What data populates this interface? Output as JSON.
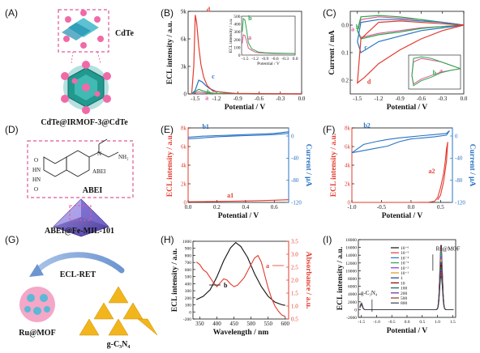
{
  "panel_letters": [
    "(A)",
    "(B)",
    "(C)",
    "(D)",
    "(E)",
    "(F)",
    "(G)",
    "(H)",
    "(I)"
  ],
  "schematics": {
    "A": {
      "cdte_label": "CdTe",
      "composite_label": "CdTe@IRMOF-3@CdTe"
    },
    "D": {
      "abei_label": "ABEI",
      "composite_label": "ABEI@Fe-MIL-101"
    },
    "G": {
      "ret_label": "ECL-RET",
      "donor_label": "Ru@MOF",
      "acceptor_label": "g-C₃N₄"
    }
  },
  "colors": {
    "red": "#e23b2e",
    "blue": "#2a73c4",
    "green": "#2aa84a",
    "pink": "#e0589a",
    "black": "#111111"
  },
  "chart_data": [
    {
      "panel": "B",
      "type": "line",
      "xlabel": "Potential / V",
      "ylabel": "ECL intensity / a.u.",
      "xlim": [
        -1.6,
        0.0
      ],
      "ylim": [
        0,
        9000
      ],
      "x_ticks": [
        "-1.5",
        "-1.2",
        "-0.9",
        "-0.6",
        "-0.3",
        "0.0"
      ],
      "y_ticks": [
        "0",
        "3k",
        "6k",
        "9k"
      ],
      "series": [
        {
          "name": "a",
          "color": "#e0589a",
          "x": [
            -1.55,
            -1.5,
            -1.45,
            -1.4,
            -1.3,
            -1.2,
            -0.6,
            0.0
          ],
          "y": [
            0,
            120,
            220,
            160,
            70,
            20,
            0,
            0
          ]
        },
        {
          "name": "b",
          "color": "#2aa84a",
          "x": [
            -1.55,
            -1.5,
            -1.45,
            -1.4,
            -1.3,
            -1.2,
            -0.6,
            0.0
          ],
          "y": [
            0,
            250,
            500,
            350,
            140,
            40,
            0,
            0
          ]
        },
        {
          "name": "c",
          "color": "#2a73c4",
          "x": [
            -1.55,
            -1.5,
            -1.45,
            -1.4,
            -1.35,
            -1.3,
            -1.2,
            -0.9,
            0.0
          ],
          "y": [
            0,
            400,
            1500,
            1300,
            900,
            600,
            250,
            30,
            0
          ]
        },
        {
          "name": "d",
          "color": "#e23b2e",
          "x": [
            -1.55,
            -1.52,
            -1.5,
            -1.48,
            -1.45,
            -1.42,
            -1.38,
            -1.33,
            -1.25,
            -1.0,
            0.0
          ],
          "y": [
            0,
            3000,
            8600,
            7800,
            5200,
            3200,
            1800,
            900,
            300,
            50,
            0
          ]
        }
      ],
      "inset": {
        "xlabel": "Potential / V",
        "ylabel": "ECL intensity / a.u.",
        "xlim": [
          -1.6,
          0.0
        ],
        "ylim": [
          0,
          500
        ],
        "x_ticks": [
          "-1.5",
          "-1.2",
          "-0.9",
          "-0.6",
          "-0.3",
          "0.0"
        ],
        "y_ticks": [
          "0",
          "100",
          "200",
          "300",
          "400",
          "500"
        ],
        "series": [
          {
            "name": "a",
            "color": "#e0589a",
            "x": [
              -1.58,
              -1.55,
              -1.5,
              -1.45,
              -1.4,
              -1.3,
              -1.2,
              -1.1,
              -0.9,
              -0.6,
              0.0
            ],
            "y": [
              150,
              260,
              250,
              180,
              90,
              60,
              40,
              30,
              25,
              20,
              20
            ]
          },
          {
            "name": "b",
            "color": "#2aa84a",
            "x": [
              -1.58,
              -1.55,
              -1.5,
              -1.45,
              -1.4,
              -1.3,
              -1.2,
              -1.1,
              -0.9,
              -0.6,
              0.0
            ],
            "y": [
              300,
              470,
              450,
              320,
              160,
              80,
              60,
              40,
              30,
              25,
              20
            ]
          }
        ]
      }
    },
    {
      "panel": "C",
      "type": "line",
      "xlabel": "Potential / V",
      "ylabel": "Current / mA",
      "xlim": [
        -1.6,
        0.0
      ],
      "ylim": [
        -0.05,
        0.25
      ],
      "y_inverted": true,
      "x_ticks": [
        "-1.5",
        "-1.2",
        "-0.9",
        "-0.6",
        "-0.3",
        "0.0"
      ],
      "y_ticks": [
        "0.0",
        "0.1",
        "0.2"
      ],
      "series": [
        {
          "name": "a",
          "color": "#e0589a",
          "x": [
            0.0,
            -0.3,
            -0.6,
            -0.9,
            -1.2,
            -1.45,
            -1.5,
            -1.45,
            -1.2,
            -0.9,
            -0.6,
            -0.3,
            0.0
          ],
          "y": [
            0.0,
            0.005,
            0.01,
            0.02,
            0.03,
            0.045,
            0.02,
            -0.02,
            -0.03,
            -0.025,
            -0.02,
            -0.01,
            0.0
          ]
        },
        {
          "name": "b",
          "color": "#2aa84a",
          "x": [
            0.0,
            -0.3,
            -0.6,
            -0.9,
            -1.2,
            -1.45,
            -1.5,
            -1.45,
            -1.2,
            -0.9,
            -0.6,
            -0.3,
            0.0
          ],
          "y": [
            0.0,
            0.005,
            0.012,
            0.025,
            0.035,
            0.05,
            0.02,
            -0.03,
            -0.035,
            -0.03,
            -0.02,
            -0.01,
            0.0
          ]
        },
        {
          "name": "c",
          "color": "#2a73c4",
          "x": [
            0.0,
            -0.3,
            -0.6,
            -0.9,
            -1.2,
            -1.45,
            -1.5,
            -1.45,
            -1.2,
            -0.9,
            -0.6,
            -0.3,
            0.0
          ],
          "y": [
            0.0,
            0.01,
            0.02,
            0.04,
            0.06,
            0.1,
            0.06,
            -0.01,
            -0.02,
            -0.02,
            -0.015,
            -0.01,
            0.0
          ]
        },
        {
          "name": "d",
          "color": "#e23b2e",
          "x": [
            0.0,
            -0.3,
            -0.6,
            -0.9,
            -1.2,
            -1.4,
            -1.5,
            -1.45,
            -1.2,
            -0.9,
            -0.6,
            -0.3,
            0.0
          ],
          "y": [
            0.0,
            0.02,
            0.05,
            0.09,
            0.14,
            0.19,
            0.21,
            0.05,
            -0.01,
            -0.015,
            -0.01,
            -0.005,
            0.0
          ]
        }
      ]
    },
    {
      "panel": "E",
      "type": "line",
      "xlabel": "Potential / V",
      "ylabel": "ECL intensity / a.u.",
      "ylabel_right": "Current / μA",
      "xlim": [
        0.0,
        0.7
      ],
      "ylim": [
        0,
        9000
      ],
      "ylim_right": [
        -120,
        15
      ],
      "x_ticks": [
        "0.0",
        "0.2",
        "0.4",
        "0.6"
      ],
      "y_ticks": [
        "0",
        "2k",
        "4k",
        "6k",
        "8k"
      ],
      "y_ticks_right": [
        "0",
        "-40",
        "-80",
        "-120"
      ],
      "series": [
        {
          "name": "a1",
          "color": "#e23b2e",
          "axis": "left",
          "x": [
            0.0,
            0.1,
            0.2,
            0.3,
            0.4,
            0.5,
            0.6,
            0.7
          ],
          "y": [
            80,
            100,
            120,
            150,
            180,
            220,
            260,
            320
          ]
        },
        {
          "name": "b1",
          "color": "#2a73c4",
          "axis": "right",
          "x": [
            0.0,
            0.1,
            0.2,
            0.3,
            0.4,
            0.5,
            0.6,
            0.7,
            0.7,
            0.6,
            0.5,
            0.4,
            0.3,
            0.2,
            0.1,
            0.0
          ],
          "y": [
            -2,
            0,
            1,
            2,
            3,
            4,
            5,
            8,
            5,
            3,
            2,
            1,
            0,
            -1,
            -3,
            -5
          ]
        }
      ]
    },
    {
      "panel": "F",
      "type": "line",
      "xlabel": "Potential / V",
      "ylabel": "ECL intensity / a.u.",
      "ylabel_right": "Current / μA",
      "xlim": [
        -1.0,
        0.7
      ],
      "ylim": [
        0,
        9000
      ],
      "ylim_right": [
        -120,
        15
      ],
      "x_ticks": [
        "-1.0",
        "-0.5",
        "0.0",
        "0.5"
      ],
      "y_ticks": [
        "0",
        "2k",
        "4k",
        "6k",
        "8k"
      ],
      "y_ticks_right": [
        "0",
        "-40",
        "-80",
        "-120"
      ],
      "series": [
        {
          "name": "a2",
          "color": "#e23b2e",
          "axis": "left",
          "x": [
            -1.0,
            -0.5,
            0.0,
            0.3,
            0.4,
            0.45,
            0.5,
            0.55,
            0.58,
            0.6,
            0.62,
            0.6,
            0.55,
            0.5,
            0.45
          ],
          "y": [
            0,
            0,
            0,
            20,
            150,
            600,
            1800,
            3500,
            5000,
            6500,
            7300,
            5000,
            2500,
            900,
            300
          ]
        },
        {
          "name": "b2",
          "color": "#2a73c4",
          "axis": "right",
          "x": [
            -1.0,
            -0.8,
            -0.6,
            -0.4,
            -0.2,
            0.0,
            0.2,
            0.4,
            0.6,
            0.65,
            0.6,
            0.4,
            0.2,
            0.0,
            -0.2,
            -0.4,
            -0.6,
            -0.8,
            -1.0
          ],
          "y": [
            -30,
            -15,
            -10,
            -6,
            -3,
            -1,
            1,
            3,
            5,
            10,
            2,
            -1,
            -3,
            -5,
            -10,
            -18,
            -22,
            -26,
            -30
          ]
        }
      ]
    },
    {
      "panel": "H",
      "type": "line",
      "xlabel": "Wavelength / nm",
      "ylabel": "ECL intensity / a.u.",
      "ylabel_right": "Absorbance / a.u.",
      "xlim": [
        330,
        610
      ],
      "ylim": [
        -200,
        1000
      ],
      "ylim_right": [
        0.5,
        3.5
      ],
      "x_ticks": [
        "350",
        "400",
        "450",
        "500",
        "550",
        "600"
      ],
      "y_ticks": [
        "-200",
        "0",
        "100",
        "200",
        "300",
        "400",
        "500",
        "600",
        "700",
        "800",
        "900",
        "1000"
      ],
      "y_ticks_right": [
        "0.5",
        "1.0",
        "1.5",
        "2.0",
        "2.5",
        "3.0",
        "3.5"
      ],
      "series": [
        {
          "name": "b",
          "color": "#111111",
          "axis": "left",
          "x": [
            340,
            360,
            380,
            400,
            420,
            440,
            455,
            470,
            490,
            510,
            530,
            550,
            570,
            590,
            600
          ],
          "y": [
            100,
            150,
            250,
            450,
            700,
            900,
            980,
            920,
            750,
            500,
            300,
            150,
            60,
            20,
            10
          ]
        },
        {
          "name": "a",
          "color": "#e23b2e",
          "axis": "right",
          "x": [
            340,
            350,
            360,
            370,
            380,
            390,
            400,
            410,
            420,
            430,
            440,
            450,
            460,
            470,
            480,
            490,
            500,
            510,
            520,
            530,
            540,
            550,
            560,
            570,
            580,
            590,
            600
          ],
          "y": [
            2.7,
            2.6,
            2.4,
            2.3,
            2.1,
            1.9,
            1.75,
            1.9,
            2.05,
            2.0,
            1.85,
            1.75,
            1.8,
            1.95,
            2.1,
            2.35,
            2.6,
            2.85,
            2.95,
            2.7,
            2.2,
            1.7,
            1.3,
            1.0,
            0.8,
            0.65,
            0.6
          ]
        }
      ]
    },
    {
      "panel": "I",
      "type": "line",
      "xlabel": "Potential / V",
      "ylabel": "ECL intensity / a.u.",
      "xlim": [
        -1.6,
        1.6
      ],
      "ylim": [
        -2000,
        18000
      ],
      "x_ticks": [
        "-1.5",
        "-1.0",
        "-0.5",
        "0.0",
        "0.5",
        "1.0",
        "1.5"
      ],
      "y_ticks": [
        "-2000",
        "0",
        "2000",
        "4000",
        "6000",
        "8000",
        "10000",
        "12000",
        "14000",
        "16000",
        "18000"
      ],
      "annotations": [
        "g-C₃N₄",
        "Ru@MOF"
      ],
      "peak_x": 1.12,
      "series": [
        {
          "name": "10⁻⁶",
          "color": "#111111",
          "peak": 17000
        },
        {
          "name": "10⁻⁵",
          "color": "#e23b2e",
          "peak": 16200
        },
        {
          "name": "10⁻⁴",
          "color": "#2a73c4",
          "peak": 15500
        },
        {
          "name": "10⁻³",
          "color": "#2aa84a",
          "peak": 14800
        },
        {
          "name": "10⁻²",
          "color": "#8a2be2",
          "peak": 14000
        },
        {
          "name": "10⁻¹",
          "color": "#d4a017",
          "peak": 13200
        },
        {
          "name": "1",
          "color": "#1e3a8a",
          "peak": 12500
        },
        {
          "name": "10",
          "color": "#8b0000",
          "peak": 11800
        },
        {
          "name": "100",
          "color": "#0b6e4f",
          "peak": 11000
        },
        {
          "name": "200",
          "color": "#6b21a8",
          "peak": 10200
        },
        {
          "name": "500",
          "color": "#9a3412",
          "peak": 9500
        },
        {
          "name": "800",
          "color": "#334155",
          "peak": 8800
        }
      ]
    }
  ]
}
